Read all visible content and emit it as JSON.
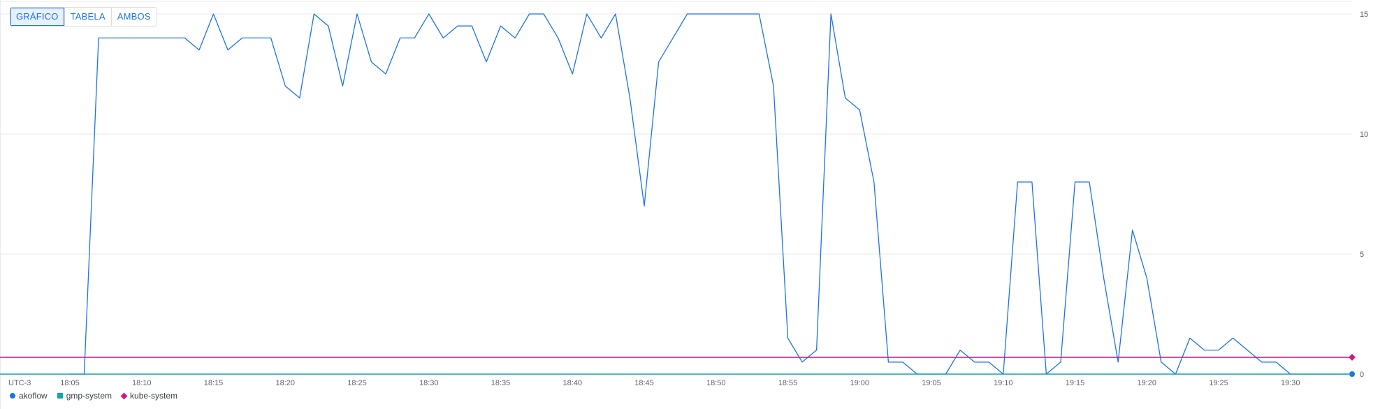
{
  "view_toggle": {
    "buttons": [
      {
        "label": "GRÁFICO",
        "active": true
      },
      {
        "label": "TABELA",
        "active": false
      },
      {
        "label": "AMBOS",
        "active": false
      }
    ]
  },
  "chart_data": {
    "type": "line",
    "timezone_label": "UTC-3",
    "x_ticks": [
      "18:05",
      "18:10",
      "18:15",
      "18:20",
      "18:25",
      "18:30",
      "18:35",
      "18:40",
      "18:45",
      "18:50",
      "18:55",
      "19:00",
      "19:05",
      "19:10",
      "19:15",
      "19:20",
      "19:25",
      "19:30"
    ],
    "y_ticks": [
      0,
      5,
      10,
      15
    ],
    "ylim": [
      0,
      15
    ],
    "grid": true,
    "legend_position": "bottom-left",
    "series": [
      {
        "name": "akoflow",
        "color": "#1a73e8",
        "marker": "circle",
        "x": [
          "18:05",
          "18:06",
          "18:07",
          "18:08",
          "18:09",
          "18:10",
          "18:11",
          "18:12",
          "18:13",
          "18:14",
          "18:15",
          "18:16",
          "18:17",
          "18:18",
          "18:19",
          "18:20",
          "18:21",
          "18:22",
          "18:23",
          "18:24",
          "18:25",
          "18:26",
          "18:27",
          "18:28",
          "18:29",
          "18:30",
          "18:31",
          "18:32",
          "18:33",
          "18:34",
          "18:35",
          "18:36",
          "18:37",
          "18:38",
          "18:39",
          "18:40",
          "18:41",
          "18:42",
          "18:43",
          "18:44",
          "18:45",
          "18:46",
          "18:47",
          "18:48",
          "18:49",
          "18:50",
          "18:51",
          "18:52",
          "18:53",
          "18:54",
          "18:55",
          "18:56",
          "18:57",
          "18:58",
          "18:59",
          "19:00",
          "19:01",
          "19:02",
          "19:03",
          "19:04",
          "19:05",
          "19:06",
          "19:07",
          "19:08",
          "19:09",
          "19:10",
          "19:11",
          "19:12",
          "19:13",
          "19:14",
          "19:15",
          "19:16",
          "19:17",
          "19:18",
          "19:19",
          "19:20",
          "19:21",
          "19:22",
          "19:23",
          "19:24",
          "19:25",
          "19:26",
          "19:27",
          "19:28",
          "19:29",
          "19:30",
          "19:31",
          "19:32",
          "19:33",
          "19:34"
        ],
        "values": [
          0,
          0,
          14,
          14,
          14,
          14,
          14,
          14,
          14,
          13.5,
          15,
          13.5,
          14,
          14,
          14,
          12,
          11.5,
          15,
          14.5,
          12,
          15,
          13,
          12.5,
          14,
          14,
          15,
          14,
          14.5,
          14.5,
          13,
          14.5,
          14,
          15,
          15,
          14,
          12.5,
          15,
          14,
          15,
          11.5,
          7,
          13,
          14,
          15,
          15,
          15,
          15,
          15,
          15,
          12,
          1.5,
          0.5,
          1,
          15,
          11.5,
          11,
          8,
          0.5,
          0.5,
          0,
          0,
          0,
          1,
          0.5,
          0.5,
          0,
          8,
          8,
          0,
          0.5,
          8,
          8,
          4,
          0.5,
          6,
          4,
          0.5,
          0,
          1.5,
          1,
          1,
          1.5,
          1,
          0.5,
          0.5,
          0,
          0,
          0,
          0,
          0
        ]
      },
      {
        "name": "gmp-system",
        "color": "#12a4af",
        "marker": "square",
        "x": [
          "18:05",
          "19:34"
        ],
        "values": [
          0,
          0
        ]
      },
      {
        "name": "kube-system",
        "color": "#d01884",
        "marker": "diamond",
        "x": [
          "18:05",
          "19:34"
        ],
        "values": [
          0.7,
          0.7
        ]
      }
    ]
  }
}
